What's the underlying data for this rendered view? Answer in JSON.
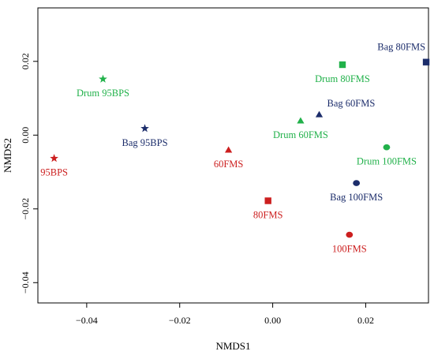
{
  "chart_data": {
    "type": "scatter",
    "title": "",
    "xlabel": "NMDS1",
    "ylabel": "NMDS2",
    "xlim": [
      -0.0505,
      0.0335
    ],
    "ylim": [
      -0.0455,
      0.0345
    ],
    "xticks": [
      {
        "value": -0.04,
        "label": "−0.04"
      },
      {
        "value": -0.02,
        "label": "−0.02"
      },
      {
        "value": 0.0,
        "label": "0.00"
      },
      {
        "value": 0.02,
        "label": "0.02"
      }
    ],
    "yticks": [
      {
        "value": -0.04,
        "label": "−0.04"
      },
      {
        "value": -0.02,
        "label": "−0.02"
      },
      {
        "value": 0.0,
        "label": "0.00"
      },
      {
        "value": 0.02,
        "label": "0.02"
      }
    ],
    "grid": false,
    "legend": "none",
    "colors": {
      "red": "#cc1f1f",
      "green": "#21b14a",
      "navy": "#1c2d6b"
    },
    "points": [
      {
        "label": "95BPS",
        "x": -0.047,
        "y": -0.0063,
        "marker": "star",
        "color": "#cc1f1f",
        "label_pos": "below"
      },
      {
        "label": "Drum 95BPS",
        "x": -0.0365,
        "y": 0.0152,
        "marker": "star",
        "color": "#21b14a",
        "label_pos": "below"
      },
      {
        "label": "Bag 95BPS",
        "x": -0.0275,
        "y": 0.0018,
        "marker": "star",
        "color": "#1c2d6b",
        "label_pos": "below"
      },
      {
        "label": "60FMS",
        "x": -0.0095,
        "y": -0.004,
        "marker": "triangle",
        "color": "#cc1f1f",
        "label_pos": "below"
      },
      {
        "label": "80FMS",
        "x": -0.001,
        "y": -0.0178,
        "marker": "square",
        "color": "#cc1f1f",
        "label_pos": "below"
      },
      {
        "label": "100FMS",
        "x": 0.0165,
        "y": -0.027,
        "marker": "circle",
        "color": "#cc1f1f",
        "label_pos": "below"
      },
      {
        "label": "Drum 60FMS",
        "x": 0.006,
        "y": 0.0039,
        "marker": "triangle",
        "color": "#21b14a",
        "label_pos": "below"
      },
      {
        "label": "Bag 60FMS",
        "x": 0.01,
        "y": 0.0056,
        "marker": "triangle",
        "color": "#1c2d6b",
        "label_pos": "above-right"
      },
      {
        "label": "Drum 80FMS",
        "x": 0.015,
        "y": 0.0191,
        "marker": "square",
        "color": "#21b14a",
        "label_pos": "below"
      },
      {
        "label": "Bag 80FMS",
        "x": 0.033,
        "y": 0.0198,
        "marker": "square",
        "color": "#1c2d6b",
        "label_pos": "above-left"
      },
      {
        "label": "Drum 100FMS",
        "x": 0.0245,
        "y": -0.0033,
        "marker": "circle",
        "color": "#21b14a",
        "label_pos": "below"
      },
      {
        "label": "Bag 100FMS",
        "x": 0.018,
        "y": -0.013,
        "marker": "circle",
        "color": "#1c2d6b",
        "label_pos": "below"
      }
    ]
  }
}
